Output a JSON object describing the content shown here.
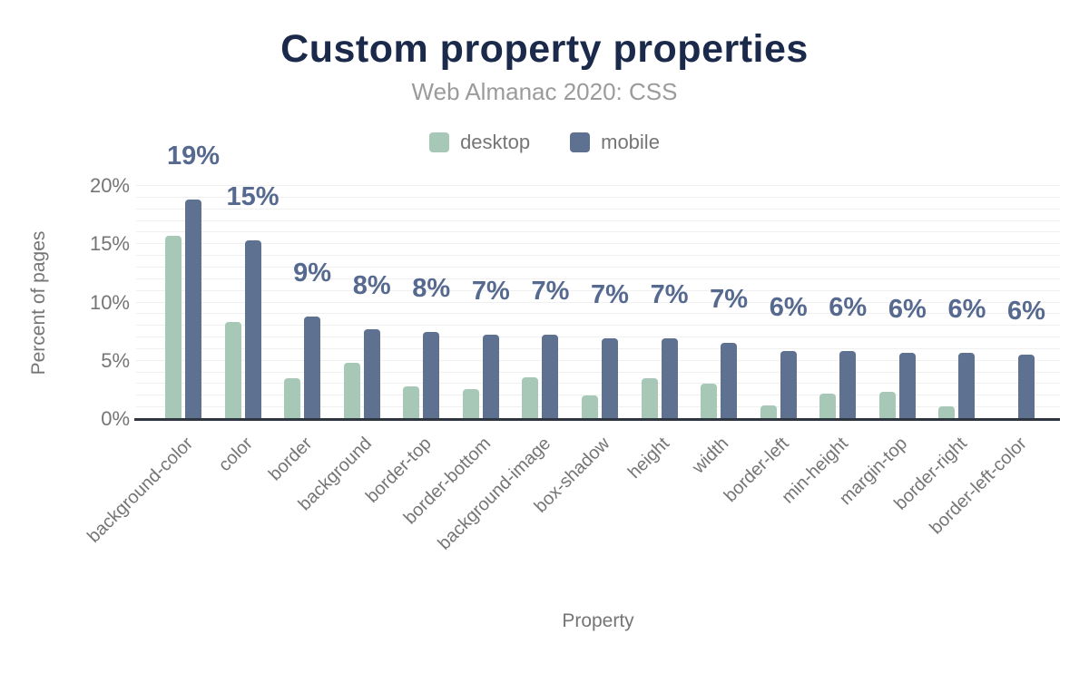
{
  "chart_data": {
    "type": "bar",
    "title": "Custom property properties",
    "subtitle": "Web Almanac 2020: CSS",
    "xlabel": "Property",
    "ylabel": "Percent of pages",
    "ylim": [
      0,
      20
    ],
    "ytick_values": [
      0,
      5,
      10,
      15,
      20
    ],
    "ytick_labels": [
      "0%",
      "5%",
      "10%",
      "15%",
      "20%"
    ],
    "minor_grid_step": 1,
    "grid": true,
    "legend_position": "top-center",
    "categories": [
      "background-color",
      "color",
      "border",
      "background",
      "border-top",
      "border-bottom",
      "background-image",
      "box-shadow",
      "height",
      "width",
      "border-left",
      "min-height",
      "margin-top",
      "border-right",
      "border-left-color"
    ],
    "series": [
      {
        "name": "desktop",
        "color": "#a8c8b7",
        "values": [
          15.7,
          8.3,
          3.5,
          4.8,
          2.8,
          2.6,
          3.6,
          2.0,
          3.5,
          3.0,
          1.2,
          2.2,
          2.3,
          1.1,
          0
        ]
      },
      {
        "name": "mobile",
        "color": "#5f7190",
        "values": [
          18.8,
          15.3,
          8.8,
          7.7,
          7.5,
          7.2,
          7.2,
          6.9,
          6.9,
          6.5,
          5.8,
          5.8,
          5.7,
          5.7,
          5.5
        ]
      }
    ],
    "bar_labels": {
      "series": "mobile",
      "values": [
        "19%",
        "15%",
        "9%",
        "8%",
        "8%",
        "7%",
        "7%",
        "7%",
        "7%",
        "7%",
        "6%",
        "6%",
        "6%",
        "6%",
        "6%"
      ]
    }
  },
  "colors": {
    "background": "#ffffff",
    "title": "#1b2a4a",
    "subtitle": "#9b9b9b",
    "axis_text": "#757575",
    "axis_line": "#2f3640",
    "gridline": "#f0f0f0",
    "bar_label": "#56698f",
    "desktop": "#a8c8b7",
    "mobile": "#5f7190"
  }
}
